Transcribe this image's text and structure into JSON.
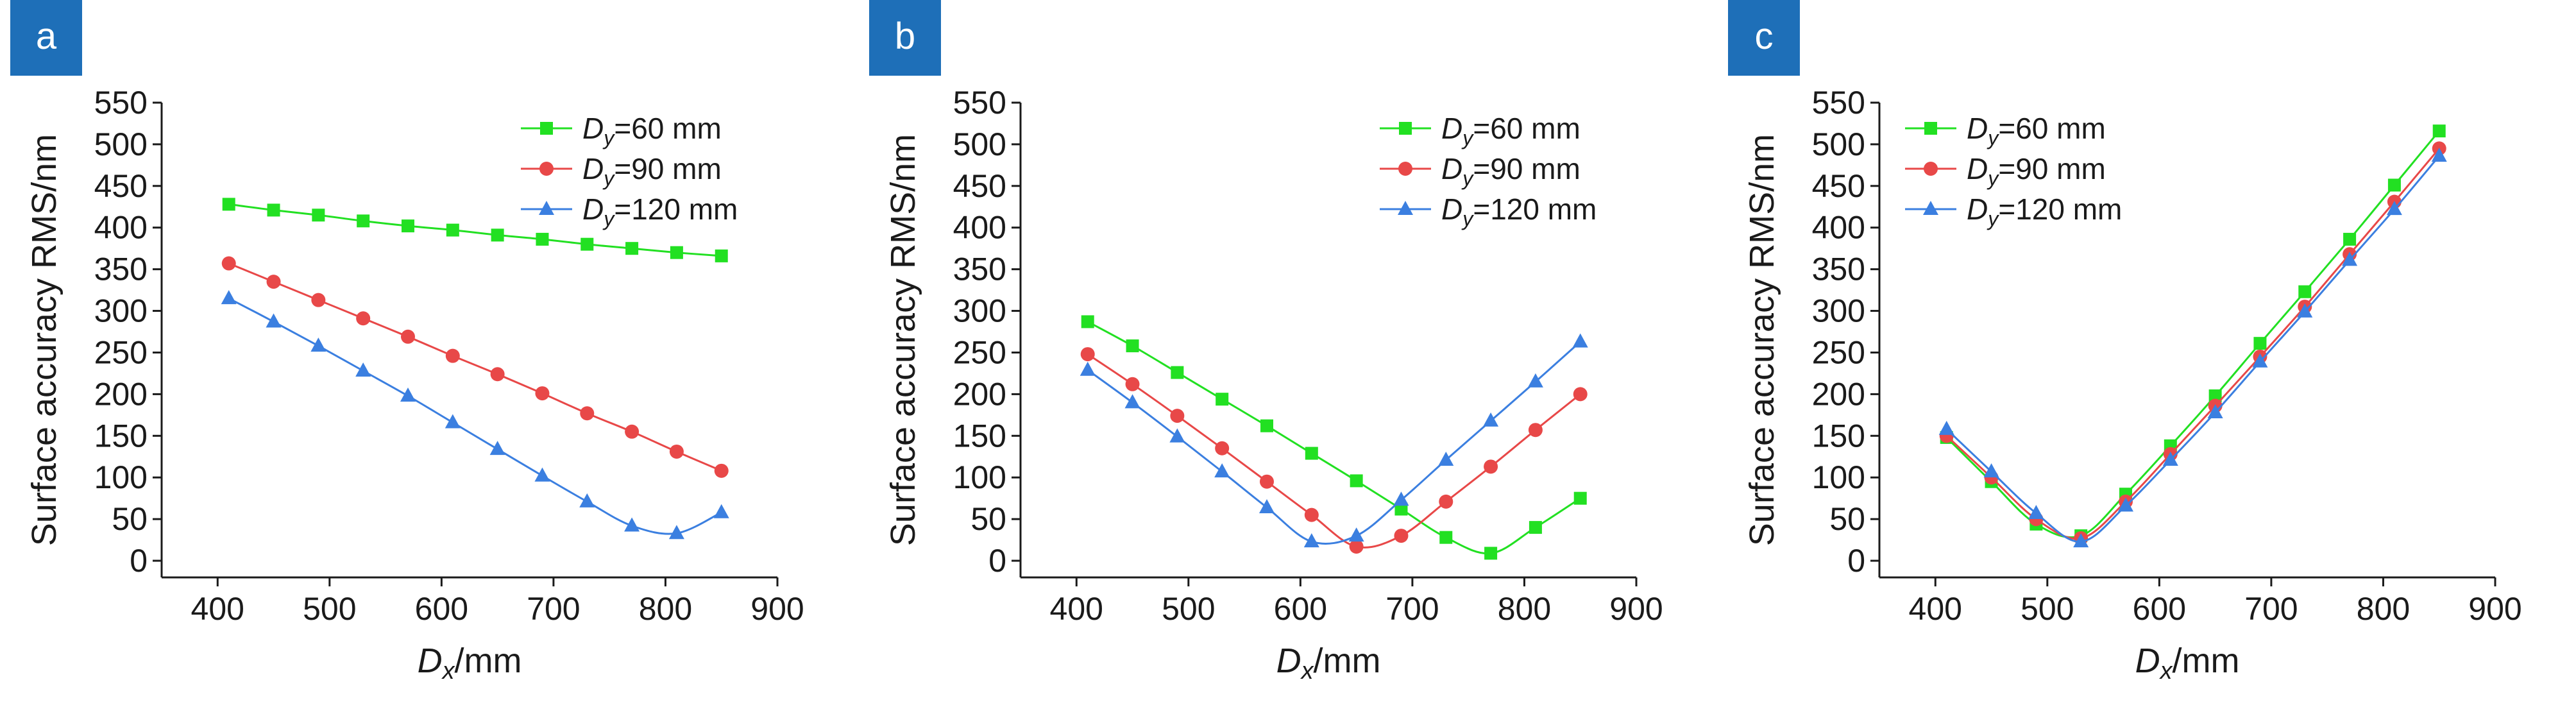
{
  "colors": {
    "badge": "#1e6fb8",
    "series": [
      "#22e022",
      "#e84848",
      "#3b7fe0"
    ],
    "axis": "#1a1a1a"
  },
  "chart_data": [
    {
      "panel_label": "a",
      "type": "line",
      "xlabel_main": "D",
      "xlabel_sub": "x",
      "xlabel_rest": "/mm",
      "ylabel": "Surface accuracy RMS/nm",
      "xlim": [
        350,
        900
      ],
      "ylim": [
        -20,
        550
      ],
      "xticks": [
        400,
        500,
        600,
        700,
        800,
        900
      ],
      "yticks": [
        0,
        50,
        100,
        150,
        200,
        250,
        300,
        350,
        400,
        450,
        500,
        550
      ],
      "legend_position": "top-right",
      "x": [
        410,
        450,
        490,
        530,
        570,
        610,
        650,
        690,
        730,
        770,
        810,
        850
      ],
      "series": [
        {
          "name_main": "D",
          "name_sub": "y",
          "name_rest": "=60 mm",
          "marker": "square",
          "values": [
            428,
            421,
            415,
            408,
            402,
            397,
            391,
            386,
            380,
            375,
            370,
            366
          ]
        },
        {
          "name_main": "D",
          "name_sub": "y",
          "name_rest": "=90 mm",
          "marker": "circle",
          "values": [
            357,
            335,
            313,
            291,
            269,
            246,
            224,
            201,
            177,
            155,
            131,
            108
          ]
        },
        {
          "name_main": "D",
          "name_sub": "y",
          "name_rest": "=120 mm",
          "marker": "triangle",
          "values": [
            315,
            287,
            258,
            228,
            198,
            166,
            134,
            102,
            71,
            42,
            33,
            58
          ]
        }
      ]
    },
    {
      "panel_label": "b",
      "type": "line",
      "xlabel_main": "D",
      "xlabel_sub": "x",
      "xlabel_rest": "/mm",
      "ylabel": "Surface accuracy RMS/nm",
      "xlim": [
        350,
        900
      ],
      "ylim": [
        -20,
        550
      ],
      "xticks": [
        400,
        500,
        600,
        700,
        800,
        900
      ],
      "yticks": [
        0,
        50,
        100,
        150,
        200,
        250,
        300,
        350,
        400,
        450,
        500,
        550
      ],
      "legend_position": "top-right",
      "x": [
        410,
        450,
        490,
        530,
        570,
        610,
        650,
        690,
        730,
        770,
        810,
        850
      ],
      "series": [
        {
          "name_main": "D",
          "name_sub": "y",
          "name_rest": "=60 mm",
          "marker": "square",
          "values": [
            287,
            258,
            226,
            194,
            162,
            129,
            96,
            62,
            28,
            9,
            40,
            75
          ]
        },
        {
          "name_main": "D",
          "name_sub": "y",
          "name_rest": "=90 mm",
          "marker": "circle",
          "values": [
            248,
            212,
            174,
            135,
            95,
            55,
            17,
            30,
            71,
            113,
            157,
            200
          ]
        },
        {
          "name_main": "D",
          "name_sub": "y",
          "name_rest": "=120 mm",
          "marker": "triangle",
          "values": [
            229,
            190,
            149,
            107,
            64,
            23,
            30,
            73,
            121,
            168,
            215,
            263
          ]
        }
      ]
    },
    {
      "panel_label": "c",
      "type": "line",
      "xlabel_main": "D",
      "xlabel_sub": "x",
      "xlabel_rest": "/mm",
      "ylabel": "Surface accuracy RMS/nm",
      "xlim": [
        350,
        900
      ],
      "ylim": [
        -20,
        550
      ],
      "xticks": [
        400,
        500,
        600,
        700,
        800,
        900
      ],
      "yticks": [
        0,
        50,
        100,
        150,
        200,
        250,
        300,
        350,
        400,
        450,
        500,
        550
      ],
      "legend_position": "top-left",
      "x": [
        410,
        450,
        490,
        530,
        570,
        610,
        650,
        690,
        730,
        770,
        810,
        850
      ],
      "series": [
        {
          "name_main": "D",
          "name_sub": "y",
          "name_rest": "=60 mm",
          "marker": "square",
          "values": [
            148,
            95,
            44,
            30,
            80,
            138,
            198,
            261,
            323,
            386,
            451,
            516
          ]
        },
        {
          "name_main": "D",
          "name_sub": "y",
          "name_rest": "=90 mm",
          "marker": "circle",
          "values": [
            150,
            100,
            50,
            27,
            71,
            128,
            186,
            245,
            305,
            368,
            431,
            495
          ]
        },
        {
          "name_main": "D",
          "name_sub": "y",
          "name_rest": "=120 mm",
          "marker": "triangle",
          "values": [
            158,
            107,
            57,
            23,
            66,
            121,
            178,
            239,
            299,
            361,
            422,
            486
          ]
        }
      ]
    }
  ]
}
